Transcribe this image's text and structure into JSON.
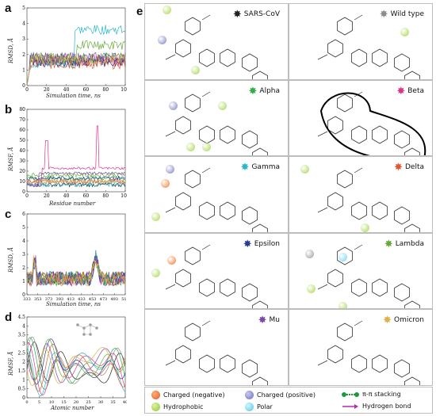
{
  "panels": {
    "a": {
      "letter": "a",
      "ylabel": "RMSD, Å",
      "xlabel": "Simulation time, ns",
      "yticks": [
        "0",
        "1",
        "2",
        "3",
        "4",
        "5"
      ],
      "xticks": [
        "0",
        "20",
        "40",
        "60",
        "80",
        "100"
      ]
    },
    "b": {
      "letter": "b",
      "ylabel": "RMSF, Å",
      "xlabel": "Residue number",
      "yticks": [
        "0",
        "10",
        "20",
        "30",
        "40",
        "50",
        "60",
        "70",
        "80"
      ],
      "xticks": [
        "0",
        "20",
        "40",
        "60",
        "80",
        "100"
      ]
    },
    "c": {
      "letter": "c",
      "ylabel": "RMSD, Å",
      "xlabel": "Simulation time, ns",
      "yticks": [
        "0",
        "1",
        "2",
        "3",
        "4",
        "5",
        "6"
      ],
      "xticks": [
        "333",
        "353",
        "373",
        "393",
        "413",
        "433",
        "453",
        "473",
        "493",
        "513"
      ]
    },
    "d": {
      "letter": "d",
      "ylabel": "RMSF, Å",
      "xlabel": "Atomic number",
      "yticks": [
        "0",
        "0.5",
        "1",
        "1.5",
        "2",
        "2.5",
        "3",
        "3.5",
        "4",
        "4.5"
      ],
      "xticks": [
        "0",
        "5",
        "10",
        "15",
        "20",
        "25",
        "30",
        "35",
        "40"
      ]
    },
    "e": {
      "letter": "e"
    }
  },
  "variants": [
    {
      "name": "SARS-CoV",
      "color": "#222222"
    },
    {
      "name": "Wild type",
      "color": "#8c8c8c"
    },
    {
      "name": "Alpha",
      "color": "#2fae4a"
    },
    {
      "name": "Beta",
      "color": "#e0338c"
    },
    {
      "name": "Gamma",
      "color": "#2bb7c9"
    },
    {
      "name": "Delta",
      "color": "#e4572e"
    },
    {
      "name": "Epsilon",
      "color": "#2a3d8f"
    },
    {
      "name": "Lambda",
      "color": "#6aaa3a"
    },
    {
      "name": "Mu",
      "color": "#7a4aa8"
    },
    {
      "name": "Omicron",
      "color": "#e0b04a"
    }
  ],
  "legend": {
    "charged_negative": "Charged (negative)",
    "charged_positive": "Charged (positive)",
    "pi_stacking": "π-π stacking",
    "hydrophobic": "Hydrophobic",
    "polar": "Polar",
    "hbond": "Hydrogen bond"
  },
  "colors": {
    "neg": "#f07a2a",
    "pos": "#7b7fc4",
    "hydrophobic": "#a6d64a",
    "polar": "#6fd6ee",
    "stack": "#1e9a3c",
    "hbond": "#b02db0"
  }
}
